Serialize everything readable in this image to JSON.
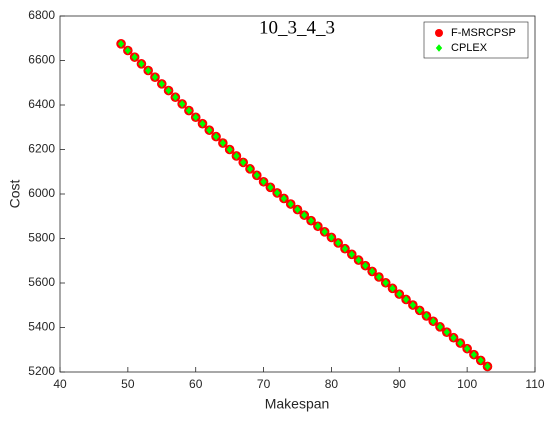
{
  "chart_data": {
    "type": "scatter",
    "title": "10_3_4_3",
    "x_label": "Makespan",
    "y_label": "Cost",
    "x": [
      49,
      50,
      51,
      52,
      53,
      54,
      55,
      56,
      57,
      58,
      59,
      60,
      61,
      62,
      63,
      64,
      65,
      66,
      67,
      68,
      69,
      70,
      71,
      72,
      73,
      74,
      75,
      76,
      77,
      78,
      79,
      80,
      81,
      82,
      83,
      84,
      85,
      86,
      87,
      88,
      89,
      90,
      91,
      92,
      93,
      94,
      95,
      96,
      97,
      98,
      99,
      100,
      101,
      102,
      103
    ],
    "series": [
      {
        "name": "F-MSRCPSP",
        "color": "#ff0000",
        "values": [
          6675,
          6645,
          6615,
          6585,
          6555,
          6525,
          6495,
          6465,
          6435,
          6405,
          6375,
          6345,
          6316,
          6287,
          6258,
          6229,
          6200,
          6171,
          6142,
          6113,
          6084,
          6055,
          6030,
          6005,
          5980,
          5955,
          5930,
          5905,
          5880,
          5855,
          5830,
          5805,
          5780,
          5754,
          5729,
          5703,
          5678,
          5652,
          5627,
          5601,
          5576,
          5550,
          5526,
          5501,
          5477,
          5452,
          5428,
          5403,
          5379,
          5354,
          5330,
          5305,
          5278,
          5252,
          5225
        ]
      },
      {
        "name": "CPLEX",
        "color": "#00ff00",
        "values": [
          6675,
          6645,
          6615,
          6585,
          6555,
          6525,
          6495,
          6465,
          6435,
          6405,
          6375,
          6345,
          6316,
          6287,
          6258,
          6229,
          6200,
          6171,
          6142,
          6113,
          6084,
          6055,
          6030,
          6005,
          5980,
          5955,
          5930,
          5905,
          5880,
          5855,
          5830,
          5805,
          5780,
          5754,
          5729,
          5703,
          5678,
          5652,
          5627,
          5601,
          5576,
          5550,
          5526,
          5501,
          5477,
          5452,
          5428,
          5403,
          5379,
          5354,
          5330,
          5305,
          5278,
          5252,
          5225
        ]
      }
    ],
    "xlim": [
      40,
      110
    ],
    "xticks": [
      40,
      50,
      60,
      70,
      80,
      90,
      100,
      110
    ],
    "ylim": [
      5200,
      6800
    ],
    "yticks": [
      5200,
      5400,
      5600,
      5800,
      6000,
      6200,
      6400,
      6600,
      6800
    ],
    "legend": "upper right"
  }
}
